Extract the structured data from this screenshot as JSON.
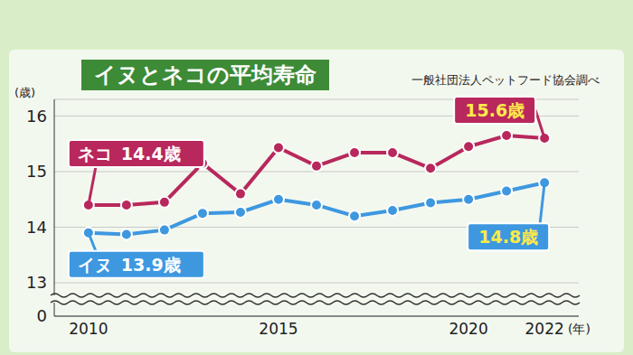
{
  "chart_data": {
    "type": "line",
    "title": "イヌとネコの平均寿命",
    "subtitle": "一般社団法人ペットフード協会調べ",
    "xlabel": "(年)",
    "ylabel": "(歳)",
    "axis_break_label": "0",
    "x": [
      2010,
      2011,
      2012,
      2013,
      2014,
      2015,
      2016,
      2017,
      2018,
      2019,
      2020,
      2021,
      2022
    ],
    "series": [
      {
        "name": "ネコ",
        "color": "#b8285c",
        "values": [
          14.4,
          14.4,
          14.45,
          15.15,
          14.6,
          15.43,
          15.1,
          15.34,
          15.34,
          15.06,
          15.45,
          15.65,
          15.6
        ],
        "callouts": [
          {
            "x": 2010,
            "label": "14.4歳"
          },
          {
            "x": 2022,
            "label": "15.6歳"
          }
        ]
      },
      {
        "name": "イヌ",
        "color": "#3d98e0",
        "values": [
          13.9,
          13.87,
          13.95,
          14.25,
          14.27,
          14.5,
          14.4,
          14.2,
          14.3,
          14.44,
          14.5,
          14.65,
          14.8
        ],
        "callouts": [
          {
            "x": 2010,
            "label": "13.9歳"
          },
          {
            "x": 2022,
            "label": "14.8歳"
          }
        ]
      }
    ],
    "xlim": [
      2009.1,
      2022.9
    ],
    "xticks": [
      2010,
      2015,
      2020,
      2022
    ],
    "ylim": [
      12.4,
      16.3
    ],
    "yticks": [
      13,
      14,
      15,
      16
    ],
    "grid": true,
    "marker": "circle"
  }
}
